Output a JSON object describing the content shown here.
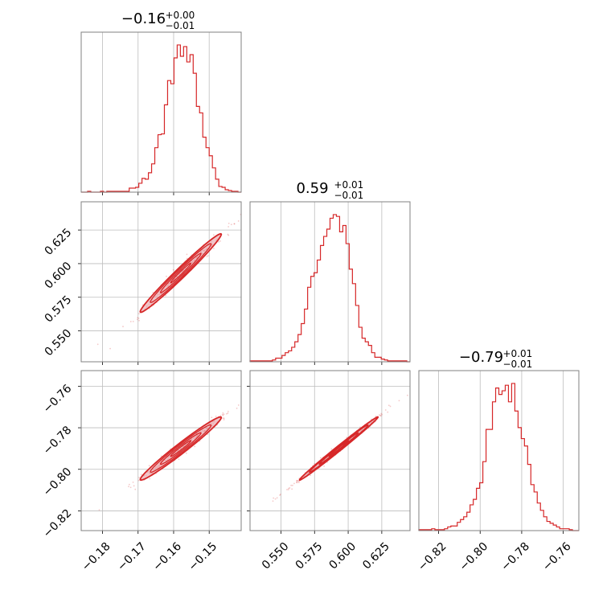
{
  "colors": {
    "series": "#d62728",
    "grid": "#bdbdbd",
    "frame": "#808080",
    "contour_fill": "#e8a0a6"
  },
  "chart_data": {
    "type": "corner",
    "parameters": [
      {
        "title": "−0.16",
        "title_sup": "+0.00",
        "title_sub": "−0.01",
        "range": [
          -0.186,
          -0.141
        ],
        "ticks": [
          -0.18,
          -0.17,
          -0.16,
          -0.15
        ],
        "tick_labels": [
          "−0.18",
          "−0.17",
          "−0.16",
          "−0.15"
        ]
      },
      {
        "title": "0.59",
        "title_sup": "+0.01",
        "title_sub": "−0.01",
        "range": [
          0.527,
          0.646
        ],
        "ticks": [
          0.55,
          0.575,
          0.6,
          0.625
        ],
        "tick_labels": [
          "0.550",
          "0.575",
          "0.600",
          "0.625"
        ]
      },
      {
        "title": "−0.79",
        "title_sup": "+0.01",
        "title_sub": "−0.01",
        "range": [
          -0.8295,
          -0.7525
        ],
        "ticks": [
          -0.82,
          -0.8,
          -0.78,
          -0.76
        ],
        "tick_labels": [
          "−0.82",
          "−0.80",
          "−0.78",
          "−0.76"
        ]
      }
    ],
    "histograms": [
      {
        "param": 0,
        "bin_range": [
          -0.186,
          -0.141
        ],
        "counts": [
          0,
          0,
          1,
          0,
          0,
          0,
          1,
          0,
          1,
          1,
          1,
          1,
          1,
          1,
          1,
          5,
          5,
          6,
          11,
          17,
          16,
          24,
          35,
          55,
          71,
          72,
          108,
          138,
          134,
          166,
          182,
          168,
          180,
          161,
          170,
          147,
          106,
          98,
          68,
          55,
          45,
          30,
          16,
          7,
          6,
          3,
          2,
          1,
          1,
          0
        ]
      },
      {
        "param": 1,
        "bin_range": [
          0.527,
          0.646
        ],
        "counts": [
          1,
          1,
          1,
          1,
          1,
          1,
          1,
          2,
          4,
          4,
          7,
          10,
          12,
          16,
          22,
          30,
          42,
          58,
          82,
          94,
          98,
          112,
          128,
          138,
          146,
          158,
          162,
          160,
          143,
          150,
          130,
          102,
          86,
          62,
          38,
          26,
          22,
          18,
          10,
          5,
          5,
          3,
          2,
          1,
          1,
          1,
          1,
          1,
          1,
          0
        ]
      },
      {
        "param": 2,
        "bin_range": [
          -0.8295,
          -0.7525
        ],
        "counts": [
          1,
          1,
          1,
          1,
          2,
          1,
          1,
          1,
          2,
          4,
          5,
          5,
          9,
          12,
          15,
          20,
          28,
          34,
          46,
          52,
          75,
          110,
          110,
          140,
          155,
          148,
          152,
          158,
          140,
          160,
          130,
          112,
          100,
          92,
          72,
          50,
          42,
          30,
          22,
          15,
          10,
          8,
          6,
          4,
          2,
          2,
          2,
          1,
          0,
          0
        ]
      }
    ],
    "correlations": [
      {
        "x_param": 0,
        "y_param": 1,
        "mean": [
          -0.158,
          0.593
        ],
        "sigma": [
          0.0057,
          0.0146
        ],
        "rho": 0.985
      },
      {
        "x_param": 0,
        "y_param": 2,
        "mean": [
          -0.158,
          -0.79
        ],
        "sigma": [
          0.0057,
          0.0076
        ],
        "rho": 0.98
      },
      {
        "x_param": 1,
        "y_param": 2,
        "mean": [
          0.593,
          -0.79
        ],
        "sigma": [
          0.0146,
          0.0076
        ],
        "rho": 0.995
      }
    ],
    "grid": true,
    "legend": "none"
  }
}
